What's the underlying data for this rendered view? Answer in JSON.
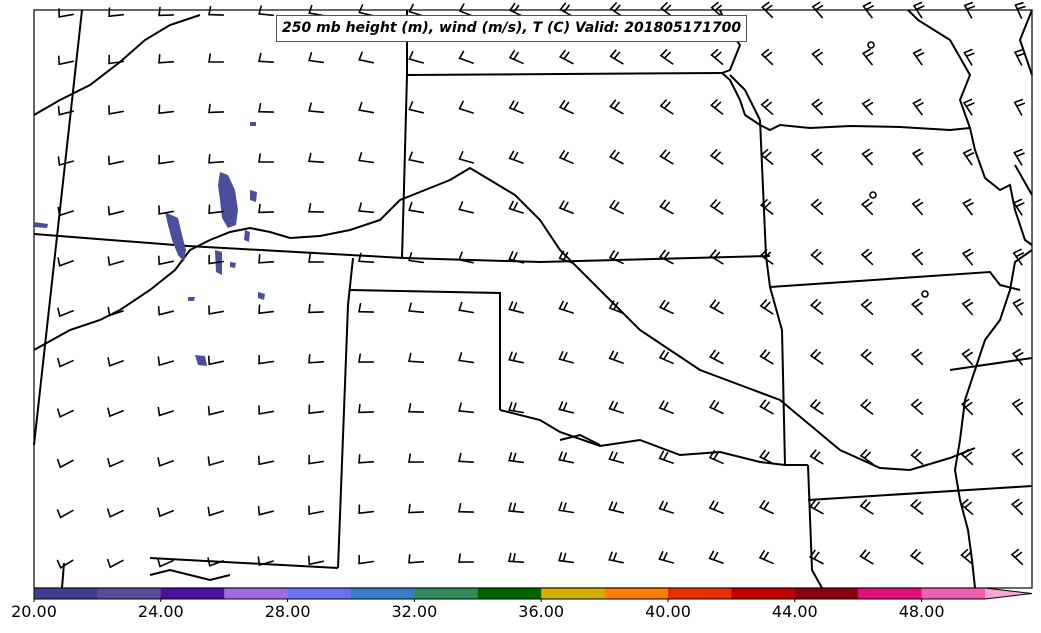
{
  "title": "250 mb height (m), wind (m/s), T (C) Valid: 201805171700",
  "colorbar": {
    "tick_labels": [
      "20.00",
      "24.00",
      "28.00",
      "32.00",
      "36.00",
      "40.00",
      "44.00",
      "48.00"
    ],
    "colors": [
      "#3f3f8f",
      "#5a4a9a",
      "#4a129f",
      "#a06ae0",
      "#6e6ef5",
      "#3a7cc8",
      "#2e8b57",
      "#006400",
      "#d4b000",
      "#ff7f00",
      "#e83000",
      "#c00000",
      "#8b0010",
      "#e0107a",
      "#f060b0"
    ],
    "extend_color": "#f7a6d6"
  },
  "map": {
    "background": "#ffffff",
    "boundary_color": "#000000",
    "shading_color": "#4b4f9a",
    "barb_color": "#000000"
  }
}
